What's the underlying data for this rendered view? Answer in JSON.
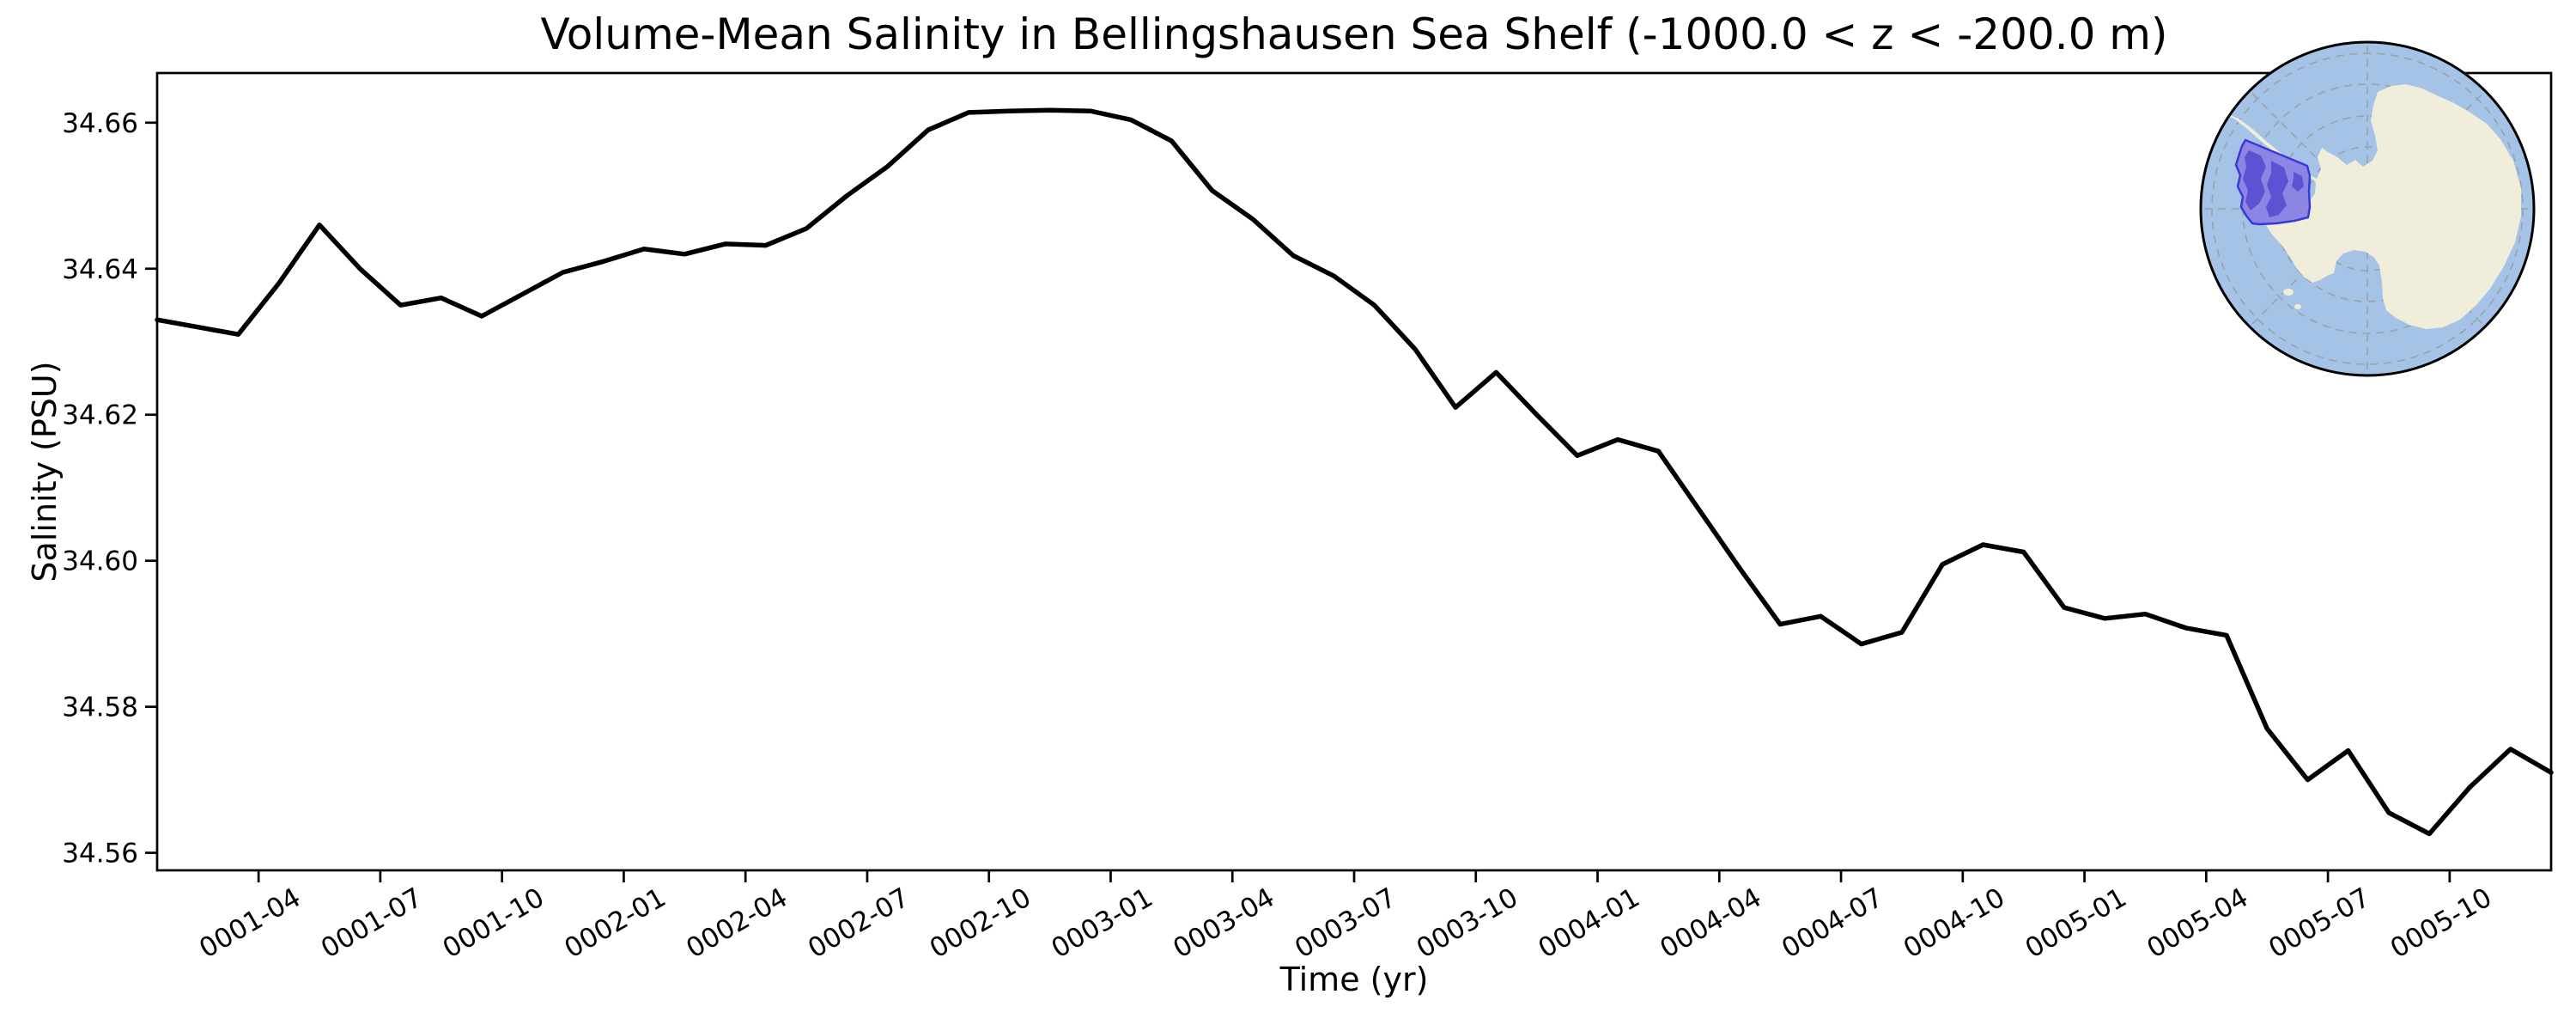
{
  "chart_data": {
    "type": "line",
    "title": "Volume-Mean Salinity in Bellingshausen Sea Shelf (-1000.0 < z < -200.0 m)",
    "xlabel": "Time (yr)",
    "ylabel": "Salinity (PSU)",
    "grid": false,
    "legend": null,
    "line_color": "#000000",
    "line_width": 5.5,
    "ylim": [
      34.5576,
      34.6668
    ],
    "xlim_months": [
      0,
      59
    ],
    "y_ticks": [
      34.66,
      34.64,
      34.62,
      34.6,
      34.58,
      34.56
    ],
    "y_tick_labels": [
      "34.66",
      "34.64",
      "34.62",
      "34.60",
      "34.58",
      "34.56"
    ],
    "x_tick_month_index": [
      3,
      6,
      9,
      12,
      15,
      18,
      21,
      24,
      27,
      30,
      33,
      36,
      39,
      42,
      45,
      48,
      51,
      54,
      57
    ],
    "x_tick_labels": [
      "0001-04",
      "0001-07",
      "0001-10",
      "0002-01",
      "0002-04",
      "0002-07",
      "0002-10",
      "0003-01",
      "0003-04",
      "0003-07",
      "0003-10",
      "0004-01",
      "0004-04",
      "0004-07",
      "0004-10",
      "0005-01",
      "0005-04",
      "0005-07",
      "0005-10"
    ],
    "x": [
      "0001-01",
      "0001-02",
      "0001-03",
      "0001-04",
      "0001-05",
      "0001-06",
      "0001-07",
      "0001-08",
      "0001-09",
      "0001-10",
      "0001-11",
      "0001-12",
      "0002-01",
      "0002-02",
      "0002-03",
      "0002-04",
      "0002-05",
      "0002-06",
      "0002-07",
      "0002-08",
      "0002-09",
      "0002-10",
      "0002-11",
      "0002-12",
      "0003-01",
      "0003-02",
      "0003-03",
      "0003-04",
      "0003-05",
      "0003-06",
      "0003-07",
      "0003-08",
      "0003-09",
      "0003-10",
      "0003-11",
      "0003-12",
      "0004-01",
      "0004-02",
      "0004-03",
      "0004-04",
      "0004-05",
      "0004-06",
      "0004-07",
      "0004-08",
      "0004-09",
      "0004-10",
      "0004-11",
      "0004-12",
      "0005-01",
      "0005-02",
      "0005-03",
      "0005-04",
      "0005-05",
      "0005-06",
      "0005-07",
      "0005-08",
      "0005-09",
      "0005-10",
      "0005-11",
      "0005-12"
    ],
    "values": [
      34.633,
      34.632,
      34.631,
      34.638,
      34.646,
      34.64,
      34.635,
      34.636,
      34.6335,
      34.6365,
      34.6395,
      34.641,
      34.6427,
      34.642,
      34.6434,
      34.6432,
      34.6455,
      34.65,
      34.654,
      34.659,
      34.6614,
      34.6616,
      34.6617,
      34.6616,
      34.6604,
      34.6575,
      34.6507,
      34.6468,
      34.6418,
      34.639,
      34.635,
      34.629,
      34.621,
      34.6258,
      34.62,
      34.6144,
      34.6166,
      34.615,
      34.607,
      34.599,
      34.5913,
      34.5924,
      34.5886,
      34.5902,
      34.5995,
      34.6022,
      34.6012,
      34.5936,
      34.5921,
      34.5927,
      34.5908,
      34.5898,
      34.577,
      34.57,
      34.574,
      34.5655,
      34.5626,
      34.569,
      34.5742,
      34.571
    ]
  },
  "inset_map": {
    "highlight_region": "Bellingshausen Sea Shelf",
    "colors": {
      "ocean": "#a5c3e7",
      "land": "#f0edda",
      "region_fill": "#8d85e3",
      "region_fill_dark": "#5c53d3",
      "region_edge": "#3939d9",
      "graticule": "#999999",
      "border": "#000000"
    }
  }
}
